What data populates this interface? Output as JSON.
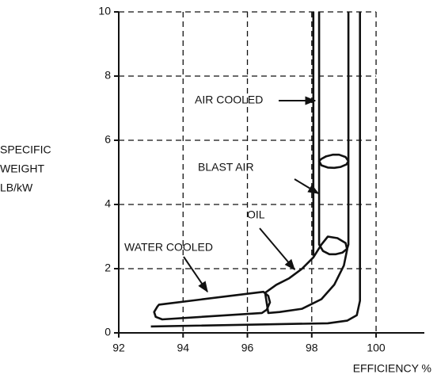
{
  "chart_data": {
    "type": "line",
    "xlabel": "EFFICIENCY %",
    "ylabel": [
      "SPECIFIC",
      "WEIGHT",
      "LB/kW"
    ],
    "xlim": [
      92,
      101.5
    ],
    "ylim": [
      0,
      10
    ],
    "xticks": [
      92,
      94,
      96,
      98,
      100
    ],
    "yticks": [
      0,
      2,
      4,
      6,
      8,
      10
    ],
    "grid": true,
    "color": "#000000",
    "series": [
      {
        "x": [
          98.05,
          98.05,
          null,
          99.5,
          99.5,
          99.4,
          99.1,
          98.5,
          93.0
        ],
        "y": [
          10,
          2.4,
          null,
          10,
          1.0,
          0.55,
          0.38,
          0.3,
          0.2
        ]
      },
      {
        "name": "AIR COOLED",
        "x": [
          98.23,
          98.23,
          98.3,
          98.5,
          98.7,
          98.9,
          99.08,
          99.14,
          99.14
        ],
        "y": [
          10,
          5.35,
          5.22,
          5.15,
          5.14,
          5.17,
          5.25,
          5.35,
          10
        ]
      },
      {
        "name": "BLAST AIR",
        "x": [
          98.23,
          98.23,
          98.35,
          98.55,
          98.75,
          98.95,
          99.1,
          99.14,
          99.14,
          99.05,
          98.85,
          98.65,
          98.45,
          98.3
        ],
        "y": [
          5.35,
          2.75,
          2.55,
          2.45,
          2.45,
          2.5,
          2.62,
          2.75,
          5.35,
          5.48,
          5.55,
          5.55,
          5.5,
          5.42
        ]
      },
      {
        "name": "OIL",
        "x": [
          96.55,
          96.9,
          97.3,
          97.7,
          98.05,
          98.3,
          98.5,
          98.8,
          99.05,
          99.1,
          99.0,
          98.7,
          98.3,
          97.7,
          97.0,
          96.65
        ],
        "y": [
          1.25,
          1.5,
          1.7,
          2.0,
          2.35,
          2.75,
          3.0,
          2.95,
          2.8,
          2.6,
          2.1,
          1.5,
          1.05,
          0.75,
          0.65,
          0.62
        ]
      },
      {
        "name": "WATER COOLED",
        "x": [
          93.25,
          96.5,
          96.65,
          96.7,
          96.6,
          96.45,
          93.35,
          93.15,
          93.1,
          93.2
        ],
        "y": [
          0.88,
          1.28,
          1.15,
          0.95,
          0.72,
          0.62,
          0.42,
          0.5,
          0.65,
          0.82
        ]
      }
    ]
  }
}
